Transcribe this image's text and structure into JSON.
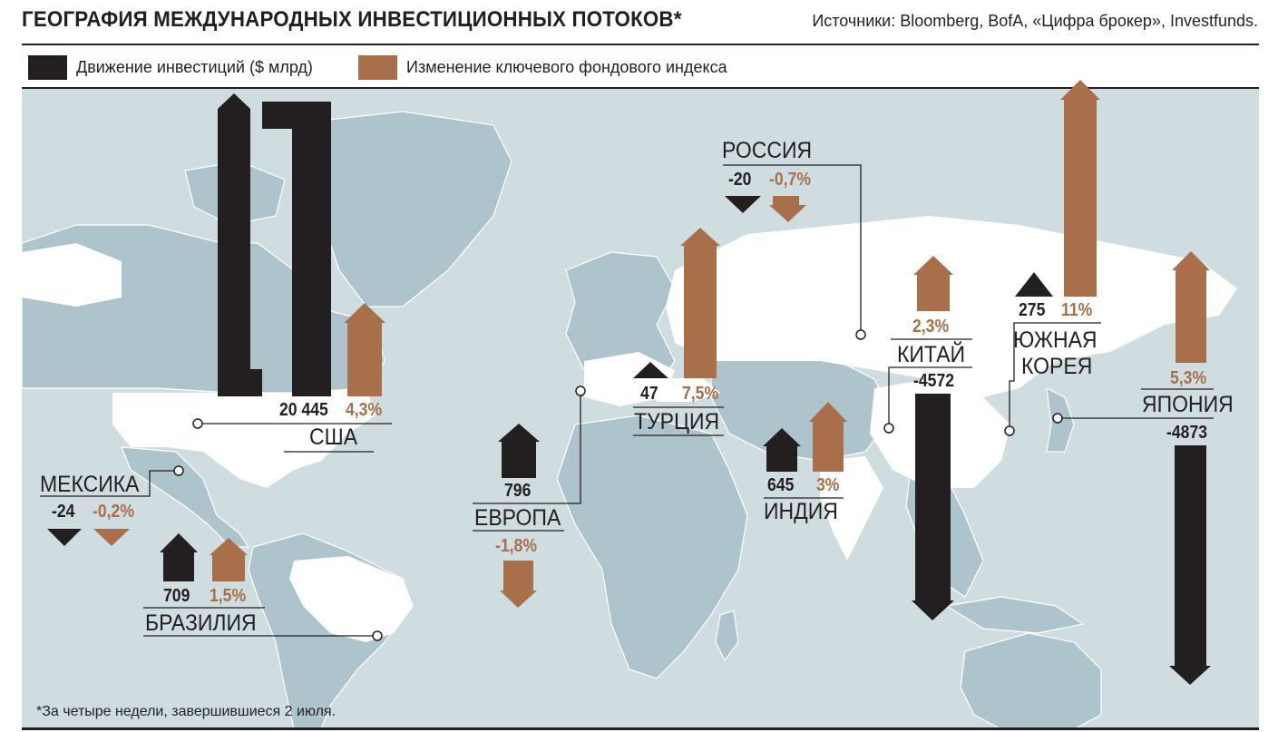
{
  "header": {
    "title": "ГЕОГРАФИЯ МЕЖДУНАРОДНЫХ ИНВЕСТИЦИОННЫХ ПОТОКОВ*",
    "sources": "Источники: Bloomberg, BofA, «Цифра брокер», Investfunds."
  },
  "legend": {
    "investment_label": "Движение инвестиций  ($ млрд)",
    "index_label": "Изменение ключевого фондового индекса"
  },
  "footnote": "*За четыре недели, завершившиеся 2 июля.",
  "colors": {
    "investment": "#231f20",
    "index": "#a96f4a",
    "ocean": "#cfdde1",
    "land_white": "#ffffff",
    "land_grey": "#aec4cc"
  },
  "countries": [
    {
      "name": "США",
      "investment": "20 445",
      "index": "4,3%"
    },
    {
      "name": "МЕКСИКА",
      "investment": "-24",
      "index": "-0,2%"
    },
    {
      "name": "БРАЗИЛИЯ",
      "investment": "709",
      "index": "1,5%"
    },
    {
      "name": "ЕВРОПА",
      "investment": "796",
      "index": "-1,8%"
    },
    {
      "name": "ТУРЦИЯ",
      "investment": "47",
      "index": "7,5%"
    },
    {
      "name": "РОССИЯ",
      "investment": "-20",
      "index": "-0,7%"
    },
    {
      "name": "ИНДИЯ",
      "investment": "645",
      "index": "3%"
    },
    {
      "name": "КИТАЙ",
      "investment": "-4572",
      "index": "2,3%"
    },
    {
      "name": "ЮЖНАЯ КОРЕЯ",
      "name_line1": "ЮЖНАЯ",
      "name_line2": "КОРЕЯ",
      "investment": "275",
      "index": "11%"
    },
    {
      "name": "ЯПОНИЯ",
      "investment": "-4873",
      "index": "5,3%"
    }
  ]
}
